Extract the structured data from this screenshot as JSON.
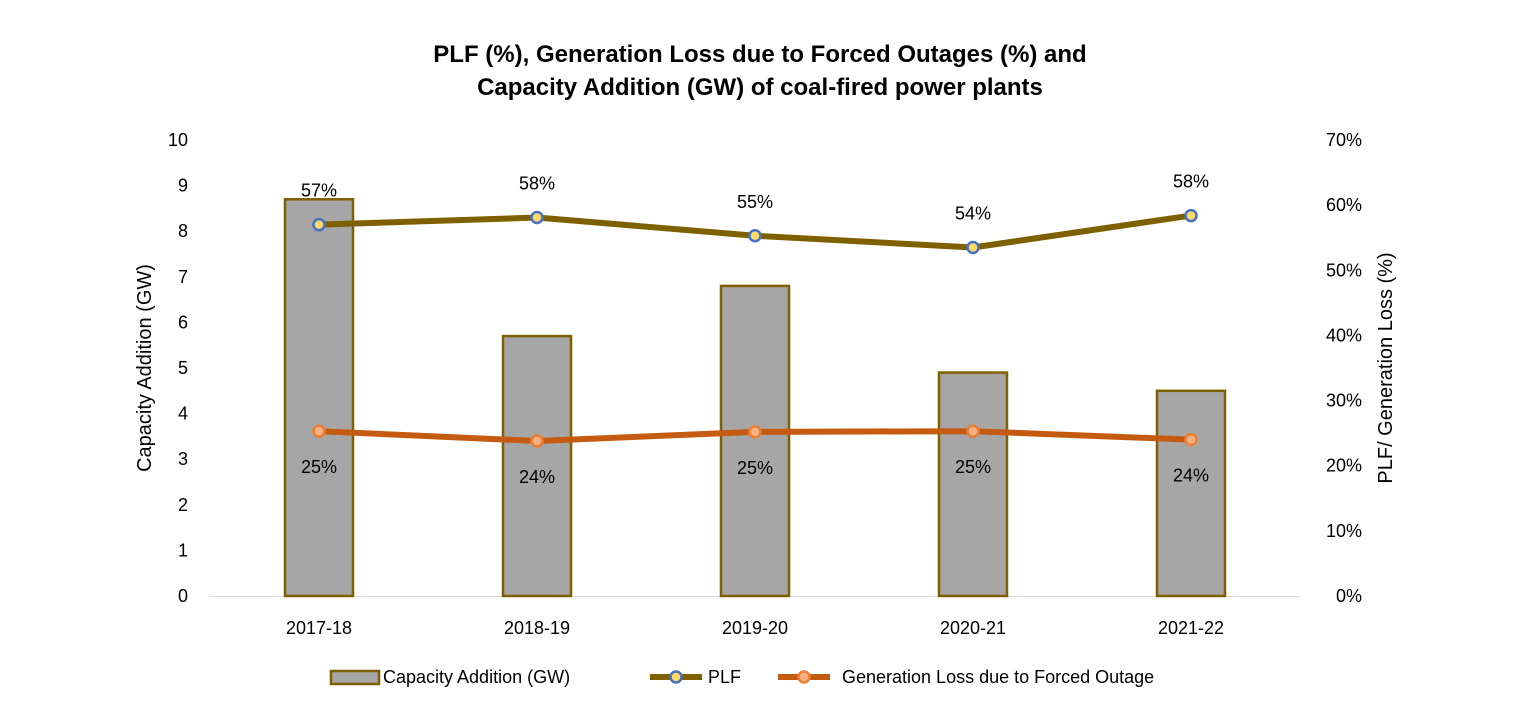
{
  "chart_data": {
    "type": "bar+line",
    "title_lines": [
      "PLF (%), Generation Loss due to Forced Outages (%) and",
      "Capacity Addition (GW) of coal-fired power plants"
    ],
    "categories": [
      "2017-18",
      "2018-19",
      "2019-20",
      "2020-21",
      "2021-22"
    ],
    "y_left": {
      "label": "Capacity Addition (GW)",
      "range": [
        0,
        10
      ],
      "ticks": [
        "0",
        "1",
        "2",
        "3",
        "4",
        "5",
        "6",
        "7",
        "8",
        "9",
        "10"
      ]
    },
    "y_right": {
      "label": "PLF/ Generation Loss (%)",
      "range": [
        0,
        70
      ],
      "ticks": [
        "0%",
        "10%",
        "20%",
        "30%",
        "40%",
        "50%",
        "60%",
        "70%"
      ]
    },
    "grid": false,
    "legend_position": "bottom",
    "series": [
      {
        "name": "Capacity Addition (GW)",
        "kind": "bar",
        "axis": "left",
        "values": [
          8.7,
          5.7,
          6.8,
          4.9,
          4.5
        ],
        "fill": "#a6a6a6",
        "stroke": "#7f6000"
      },
      {
        "name": "PLF",
        "kind": "line",
        "axis": "right",
        "values": [
          57.0,
          58.1,
          55.3,
          53.5,
          58.4
        ],
        "labels": [
          "57%",
          "58%",
          "55%",
          "54%",
          "58%"
        ],
        "color": "#7f6000",
        "marker_fill": "#ffd966",
        "marker_stroke": "#4472c4"
      },
      {
        "name": "Generation Loss due to Forced Outage",
        "kind": "line",
        "axis": "right",
        "values": [
          25.3,
          23.8,
          25.2,
          25.3,
          24.0
        ],
        "labels": [
          "25%",
          "24%",
          "25%",
          "25%",
          "24%"
        ],
        "color": "#c55a11",
        "marker_fill": "#f4b183",
        "marker_stroke": "#ed7d31"
      }
    ]
  }
}
